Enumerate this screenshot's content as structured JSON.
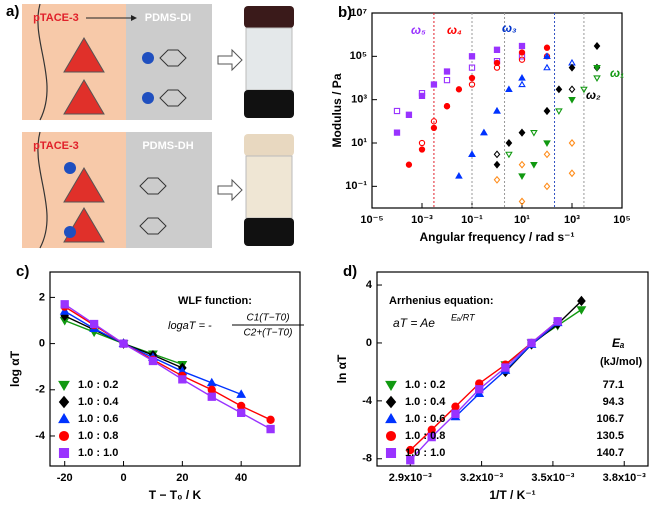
{
  "diagram": {
    "panel_label": "a)",
    "top": {
      "left_label": "pTACE-3",
      "right_label": "PDMS-DI"
    },
    "bottom": {
      "left_label": "pTACE-3",
      "right_label": "PDMS-DH"
    }
  },
  "chart_data": [
    {
      "panel_label": "b)",
      "type": "scatter",
      "xlabel": "Angular frequency / rad s⁻¹",
      "ylabel": "Modulus / Pa",
      "xscale": "log",
      "yscale": "log",
      "xlim": [
        1e-05,
        100000
      ],
      "ylim": [
        0.01,
        10000000
      ],
      "xticks": [
        {
          "value": 1e-05,
          "label": "10⁻⁵"
        },
        {
          "value": 0.001,
          "label": "10⁻³"
        },
        {
          "value": 0.1,
          "label": "10⁻¹"
        },
        {
          "value": 10,
          "label": "10¹"
        },
        {
          "value": 1000,
          "label": "10³"
        },
        {
          "value": 100000,
          "label": "10⁵"
        }
      ],
      "yticks": [
        {
          "value": 0.1,
          "label": "10⁻¹"
        },
        {
          "value": 10,
          "label": "10¹"
        },
        {
          "value": 1000,
          "label": "10³"
        },
        {
          "value": 100000,
          "label": "10⁵"
        },
        {
          "value": 10000000,
          "label": "10⁷"
        }
      ],
      "vlines": [
        {
          "value": 0.003,
          "color": "#e0202a"
        },
        {
          "value": 0.1,
          "color": "#999999"
        },
        {
          "value": 2,
          "color": "#999999"
        },
        {
          "value": 200,
          "color": "#3050c0"
        },
        {
          "value": 3000,
          "color": "#999999"
        }
      ],
      "annotations": [
        {
          "text": "ω₅",
          "color": "#9933ff"
        },
        {
          "text": "ω₄",
          "color": "#ff0000"
        },
        {
          "text": "ω₃",
          "color": "#0033cc"
        },
        {
          "text": "ω₂",
          "color": "#000000"
        },
        {
          "text": "ω₁",
          "color": "#119911"
        }
      ],
      "series": [
        {
          "color": "#9933ff",
          "marker": "square",
          "filled": true,
          "x": [
            0.0001,
            0.0003,
            0.001,
            0.003,
            0.01,
            0.1,
            1,
            10
          ],
          "values": [
            30,
            200,
            1500,
            5000,
            20000,
            100000,
            200000,
            300000
          ]
        },
        {
          "color": "#9933ff",
          "marker": "square",
          "filled": false,
          "x": [
            0.0001,
            0.001,
            0.01,
            0.1,
            1,
            10
          ],
          "values": [
            300,
            2000,
            8000,
            30000,
            60000,
            100000
          ]
        },
        {
          "color": "#ff0000",
          "marker": "circle",
          "filled": true,
          "x": [
            0.0003,
            0.001,
            0.003,
            0.01,
            0.03,
            0.1,
            1,
            10,
            100
          ],
          "values": [
            1,
            5,
            50,
            500,
            3000,
            10000,
            50000,
            150000,
            250000
          ]
        },
        {
          "color": "#ff0000",
          "marker": "circle",
          "filled": false,
          "x": [
            0.001,
            0.003,
            0.01,
            0.1,
            1,
            10,
            100
          ],
          "values": [
            10,
            100,
            500,
            5000,
            30000,
            70000,
            100000
          ]
        },
        {
          "color": "#0033ff",
          "marker": "triangle",
          "filled": true,
          "x": [
            0.03,
            0.1,
            0.3,
            1,
            3,
            10,
            100
          ],
          "values": [
            0.3,
            3,
            30,
            300,
            3000,
            10000,
            100000
          ]
        },
        {
          "color": "#0033ff",
          "marker": "triangle",
          "filled": false,
          "x": [
            0.1,
            0.3,
            1,
            10,
            100,
            1000
          ],
          "values": [
            3,
            30,
            300,
            5000,
            30000,
            50000
          ]
        },
        {
          "color": "#000000",
          "marker": "diamond",
          "filled": true,
          "x": [
            1,
            3,
            10,
            100,
            300,
            1000,
            10000
          ],
          "values": [
            1,
            10,
            30,
            300,
            3000,
            30000,
            300000
          ]
        },
        {
          "color": "#000000",
          "marker": "diamond",
          "filled": false,
          "x": [
            1,
            10,
            100,
            1000,
            10000
          ],
          "values": [
            3,
            30,
            300,
            3000,
            30000
          ]
        },
        {
          "color": "#119911",
          "marker": "triangle-down",
          "filled": true,
          "x": [
            10,
            30,
            100,
            1000,
            10000
          ],
          "values": [
            0.3,
            1,
            10,
            1000,
            30000
          ]
        },
        {
          "color": "#119911",
          "marker": "triangle-down",
          "filled": false,
          "x": [
            3,
            30,
            300,
            3000,
            10000
          ],
          "values": [
            3,
            30,
            300,
            3000,
            10000
          ]
        },
        {
          "color": "#ff8c1a",
          "marker": "diamond",
          "filled": false,
          "x": [
            1,
            10,
            100,
            1000
          ],
          "values": [
            0.2,
            1,
            3,
            10
          ]
        },
        {
          "color": "#ff8c1a",
          "marker": "diamond",
          "filled": false,
          "x": [
            10,
            100,
            1000
          ],
          "values": [
            0.02,
            0.1,
            0.4
          ]
        }
      ]
    },
    {
      "panel_label": "c)",
      "type": "scatter",
      "lines": true,
      "legend": "lower left",
      "xlabel": "T − T₀ / K",
      "ylabel": "log αT",
      "xlim": [
        -25,
        60
      ],
      "ylim": [
        -5.3,
        3.1
      ],
      "xticks": [
        -20,
        0,
        20,
        40
      ],
      "yticks": [
        -4,
        -2,
        0,
        2
      ],
      "note": "WLF function:",
      "formula": {
        "lhs": "logaT = -",
        "numerator": "C1(T−T0)",
        "denominator": "C2+(T−T0)"
      },
      "series": [
        {
          "name": "1.0 : 0.2",
          "color": "#119911",
          "marker": "triangle-down",
          "x": [
            -20,
            -10,
            0,
            10,
            20
          ],
          "values": [
            1.0,
            0.5,
            0,
            -0.45,
            -0.9
          ]
        },
        {
          "name": "1.0 : 0.4",
          "color": "#000000",
          "marker": "diamond",
          "x": [
            -20,
            0,
            10,
            20
          ],
          "values": [
            1.2,
            0,
            -0.5,
            -1.05
          ]
        },
        {
          "name": "1.0 : 0.6",
          "color": "#0033ff",
          "marker": "triangle",
          "x": [
            -20,
            -10,
            0,
            10,
            20,
            30,
            40
          ],
          "values": [
            1.4,
            0.65,
            0,
            -0.6,
            -1.2,
            -1.7,
            -2.2
          ]
        },
        {
          "name": "1.0 : 0.8",
          "color": "#ff0000",
          "marker": "circle",
          "x": [
            -20,
            -10,
            0,
            10,
            20,
            30,
            40,
            50
          ],
          "values": [
            1.6,
            0.8,
            0,
            -0.7,
            -1.4,
            -2.0,
            -2.7,
            -3.3
          ]
        },
        {
          "name": "1.0 : 1.0",
          "color": "#9933ff",
          "marker": "square",
          "x": [
            -20,
            -10,
            0,
            10,
            20,
            30,
            40,
            50
          ],
          "values": [
            1.7,
            0.85,
            0,
            -0.75,
            -1.55,
            -2.3,
            -3.0,
            -3.7
          ]
        }
      ]
    },
    {
      "panel_label": "d)",
      "type": "scatter",
      "lines": true,
      "legend": "lower left",
      "xlabel": "1/T / K⁻¹",
      "ylabel": "ln αT",
      "xlim": [
        0.00276,
        0.0039
      ],
      "ylim": [
        -8.5,
        4.9
      ],
      "xticks": [
        {
          "value": 0.0029,
          "label": "2.9x10⁻³"
        },
        {
          "value": 0.0032,
          "label": "3.2x10⁻³"
        },
        {
          "value": 0.0035,
          "label": "3.5x10⁻³"
        },
        {
          "value": 0.0038,
          "label": "3.8x10⁻³"
        }
      ],
      "yticks": [
        -8,
        -4,
        0,
        4
      ],
      "note": "Arrhenius equation:",
      "formula": {
        "base": "aT = Ae",
        "exponent": "Eₐ/RT"
      },
      "ea_header": "Eₐ",
      "ea_unit": "(kJ/mol)",
      "series": [
        {
          "name": "1.0 : 0.2",
          "ea": 77.1,
          "color": "#119911",
          "marker": "triangle-down",
          "x": [
            0.0033,
            0.00341,
            0.00352,
            0.00362
          ],
          "values": [
            -1.5,
            0,
            1.2,
            2.3
          ]
        },
        {
          "name": "1.0 : 0.4",
          "ea": 94.3,
          "color": "#000000",
          "marker": "diamond",
          "x": [
            0.0033,
            0.00341,
            0.00352,
            0.00362
          ],
          "values": [
            -2.0,
            -0.1,
            1.3,
            2.9
          ]
        },
        {
          "name": "1.0 : 0.6",
          "ea": 106.7,
          "color": "#0033ff",
          "marker": "triangle",
          "x": [
            0.00309,
            0.00319,
            0.0033,
            0.00341,
            0.00352
          ],
          "values": [
            -5.1,
            -3.5,
            -1.9,
            -0.1,
            1.4
          ]
        },
        {
          "name": "1.0 : 0.8",
          "ea": 130.5,
          "color": "#ff0000",
          "marker": "circle",
          "x": [
            0.0029,
            0.00299,
            0.00309,
            0.00319,
            0.0033,
            0.00341,
            0.00352
          ],
          "values": [
            -7.4,
            -6.0,
            -4.4,
            -2.8,
            -1.5,
            0,
            1.5
          ]
        },
        {
          "name": "1.0 : 1.0",
          "ea": 140.7,
          "color": "#9933ff",
          "marker": "square",
          "x": [
            0.0029,
            0.00299,
            0.00309,
            0.00319,
            0.0033,
            0.00341,
            0.00352
          ],
          "values": [
            -8.1,
            -6.5,
            -4.9,
            -3.2,
            -1.7,
            0,
            1.5
          ]
        }
      ]
    }
  ]
}
